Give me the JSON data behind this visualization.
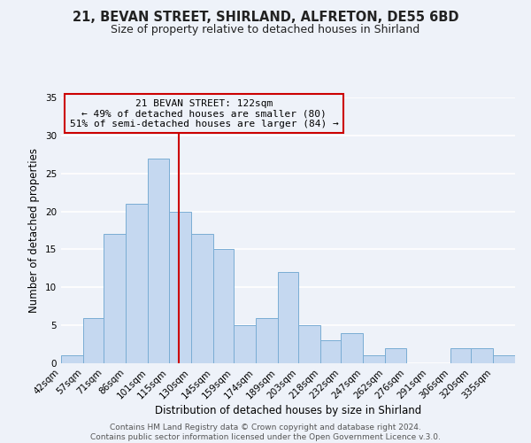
{
  "title": "21, BEVAN STREET, SHIRLAND, ALFRETON, DE55 6BD",
  "subtitle": "Size of property relative to detached houses in Shirland",
  "xlabel": "Distribution of detached houses by size in Shirland",
  "ylabel": "Number of detached properties",
  "bin_labels": [
    "42sqm",
    "57sqm",
    "71sqm",
    "86sqm",
    "101sqm",
    "115sqm",
    "130sqm",
    "145sqm",
    "159sqm",
    "174sqm",
    "189sqm",
    "203sqm",
    "218sqm",
    "232sqm",
    "247sqm",
    "262sqm",
    "276sqm",
    "291sqm",
    "306sqm",
    "320sqm",
    "335sqm"
  ],
  "bin_edges": [
    42,
    57,
    71,
    86,
    101,
    115,
    130,
    145,
    159,
    174,
    189,
    203,
    218,
    232,
    247,
    262,
    276,
    291,
    306,
    320,
    335,
    350
  ],
  "counts": [
    1,
    6,
    17,
    21,
    27,
    20,
    17,
    15,
    5,
    6,
    12,
    5,
    3,
    4,
    1,
    2,
    0,
    0,
    2,
    2,
    1
  ],
  "bar_color": "#c5d8f0",
  "bar_edge_color": "#7aadd4",
  "vline_x": 122,
  "vline_color": "#cc0000",
  "annotation_lines": [
    "21 BEVAN STREET: 122sqm",
    "← 49% of detached houses are smaller (80)",
    "51% of semi-detached houses are larger (84) →"
  ],
  "annotation_box_edgecolor": "#cc0000",
  "ylim": [
    0,
    35
  ],
  "yticks": [
    0,
    5,
    10,
    15,
    20,
    25,
    30,
    35
  ],
  "footer_lines": [
    "Contains HM Land Registry data © Crown copyright and database right 2024.",
    "Contains public sector information licensed under the Open Government Licence v.3.0."
  ],
  "bg_color": "#eef2f9",
  "grid_color": "#ffffff",
  "title_fontsize": 10.5,
  "subtitle_fontsize": 9,
  "axis_label_fontsize": 8.5,
  "tick_fontsize": 7.5,
  "annotation_fontsize": 8,
  "footer_fontsize": 6.5
}
